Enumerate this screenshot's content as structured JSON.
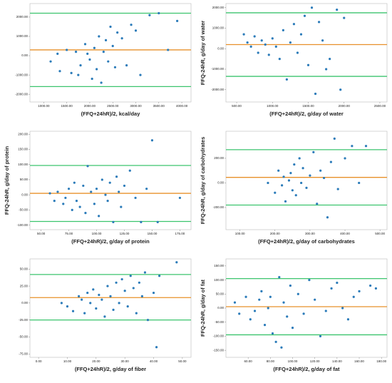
{
  "chart_data": [
    {
      "type": "scatter",
      "x_label": "(FFQ+24hR)/2, kcal/day",
      "color": "#2b7bb9",
      "x": [
        1150,
        1300,
        1350,
        1500,
        1600,
        1700,
        1750,
        1800,
        1900,
        1950,
        2000,
        2050,
        2100,
        2150,
        2200,
        2250,
        2300,
        2350,
        2400,
        2450,
        2500,
        2550,
        2600,
        2700,
        2800,
        2900,
        3000,
        3100,
        3300,
        3500,
        3700,
        3900
      ],
      "y": [
        -300,
        100,
        -800,
        300,
        -900,
        200,
        -1000,
        -500,
        600,
        100,
        -200,
        -1200,
        400,
        -700,
        1000,
        -1400,
        200,
        800,
        -300,
        1500,
        500,
        -600,
        1200,
        900,
        -500,
        1600,
        1300,
        -1000,
        2100,
        2200,
        300,
        1800
      ],
      "hlines": [
        {
          "value": 2200,
          "color": "#3cc46e"
        },
        {
          "value": 300,
          "color": "#e8902a"
        },
        {
          "value": -1600,
          "color": "#3cc46e"
        }
      ],
      "xlim": [
        700,
        4200
      ],
      "ylim": [
        -2400,
        2700
      ],
      "xticks": [
        {
          "value": 1000,
          "label": "1000.00"
        },
        {
          "value": 1500,
          "label": "1500.00"
        },
        {
          "value": 2000,
          "label": "2000.00"
        },
        {
          "value": 2500,
          "label": "2500.00"
        },
        {
          "value": 3000,
          "label": "3000.00"
        },
        {
          "value": 3500,
          "label": "3500.00"
        },
        {
          "value": 4000,
          "label": "4000.00"
        }
      ],
      "yticks": [
        {
          "value": -2000,
          "label": "-2000.00"
        },
        {
          "value": -1000,
          "label": "-1000.00"
        },
        {
          "value": 0,
          "label": "0.00"
        },
        {
          "value": 1000,
          "label": "1000.00"
        },
        {
          "value": 2000,
          "label": "2000.00"
        }
      ]
    },
    {
      "type": "scatter",
      "x_label": "(FFQ+24hR)/2, g/day of water",
      "y_label": "FFQ-24hR, g/day of water",
      "color": "#2b7bb9",
      "x": [
        600,
        650,
        700,
        750,
        800,
        850,
        900,
        950,
        1000,
        1050,
        1100,
        1150,
        1200,
        1250,
        1300,
        1350,
        1400,
        1450,
        1500,
        1550,
        1600,
        1650,
        1700,
        1750,
        1800,
        1900,
        1950,
        2000
      ],
      "y": [
        700,
        300,
        100,
        600,
        -200,
        400,
        200,
        -300,
        500,
        100,
        -500,
        900,
        -1500,
        300,
        1200,
        -200,
        700,
        1600,
        -800,
        2000,
        -2200,
        1300,
        400,
        -1000,
        -500,
        1900,
        -2000,
        1500
      ],
      "hlines": [
        {
          "value": 1750,
          "color": "#3cc46e"
        },
        {
          "value": 200,
          "color": "#e8902a"
        },
        {
          "value": -1350,
          "color": "#3cc46e"
        }
      ],
      "xlim": [
        350,
        2600
      ],
      "ylim": [
        -2600,
        2200
      ],
      "xticks": [
        {
          "value": 500,
          "label": "500.00"
        },
        {
          "value": 1000,
          "label": "1000.00"
        },
        {
          "value": 1500,
          "label": "1500.00"
        },
        {
          "value": 2000,
          "label": "2000.00"
        },
        {
          "value": 2500,
          "label": "2500.00"
        }
      ],
      "yticks": [
        {
          "value": -2000,
          "label": "-2000.00"
        },
        {
          "value": -1000,
          "label": "-1000.00"
        },
        {
          "value": 0,
          "label": "0.00"
        },
        {
          "value": 1000,
          "label": "1000.00"
        },
        {
          "value": 2000,
          "label": "2000.00"
        }
      ]
    },
    {
      "type": "scatter",
      "x_label": "(FFQ+24hR)/2, g/day of protein",
      "y_label": "FFQ-24hR, g/day of protein",
      "color": "#2b7bb9",
      "x": [
        58,
        62,
        65,
        70,
        72,
        75,
        78,
        80,
        82,
        85,
        88,
        90,
        92,
        95,
        98,
        100,
        102,
        105,
        108,
        110,
        112,
        115,
        118,
        120,
        122,
        125,
        130,
        135,
        140,
        145,
        150,
        155,
        175
      ],
      "y": [
        5,
        -20,
        10,
        -30,
        -10,
        20,
        -50,
        40,
        -20,
        -40,
        30,
        -60,
        95,
        10,
        -30,
        20,
        -70,
        50,
        0,
        -20,
        40,
        -90,
        60,
        10,
        -40,
        30,
        80,
        -10,
        -90,
        20,
        180,
        -90,
        -10
      ],
      "hlines": [
        {
          "value": 97,
          "color": "#3cc46e"
        },
        {
          "value": 5,
          "color": "#e8902a"
        },
        {
          "value": -88,
          "color": "#3cc46e"
        }
      ],
      "xlim": [
        40,
        185
      ],
      "ylim": [
        -115,
        210
      ],
      "xticks": [
        {
          "value": 50,
          "label": "50.00"
        },
        {
          "value": 75,
          "label": "75.00"
        },
        {
          "value": 100,
          "label": "100.00"
        },
        {
          "value": 125,
          "label": "125.00"
        },
        {
          "value": 150,
          "label": "150.00"
        },
        {
          "value": 175,
          "label": "175.00"
        }
      ],
      "yticks": [
        {
          "value": -100,
          "label": "-100.00"
        },
        {
          "value": -50,
          "label": "-50.00"
        },
        {
          "value": 0,
          "label": "0.00"
        },
        {
          "value": 50,
          "label": "50.00"
        },
        {
          "value": 100,
          "label": "100.00"
        },
        {
          "value": 150,
          "label": "150.00"
        },
        {
          "value": 200,
          "label": "200.00"
        }
      ]
    },
    {
      "type": "scatter",
      "x_label": "(FFQ+24hR)/2, g/day of carbohydrates",
      "y_label": "FFQ-24hR, g/day of carbohydrates",
      "color": "#2b7bb9",
      "x": [
        180,
        200,
        210,
        220,
        225,
        230,
        240,
        245,
        250,
        255,
        260,
        270,
        275,
        280,
        290,
        300,
        310,
        320,
        330,
        340,
        350,
        360,
        370,
        380,
        400,
        420,
        440,
        460
      ],
      "y": [
        0,
        -80,
        100,
        -20,
        50,
        -150,
        20,
        80,
        -60,
        150,
        -100,
        200,
        0,
        120,
        -40,
        60,
        250,
        -170,
        100,
        40,
        -280,
        170,
        360,
        -50,
        200,
        300,
        0,
        300
      ],
      "hlines": [
        {
          "value": 270,
          "color": "#3cc46e"
        },
        {
          "value": 45,
          "color": "#e8902a"
        },
        {
          "value": -180,
          "color": "#3cc46e"
        }
      ],
      "xlim": [
        60,
        520
      ],
      "ylim": [
        -380,
        420
      ],
      "xticks": [
        {
          "value": 100,
          "label": "100.00"
        },
        {
          "value": 200,
          "label": "200.00"
        },
        {
          "value": 300,
          "label": "300.00"
        },
        {
          "value": 400,
          "label": "400.00"
        },
        {
          "value": 500,
          "label": "500.00"
        }
      ],
      "yticks": [
        {
          "value": -200,
          "label": "-200.00"
        },
        {
          "value": 0,
          "label": "0.00"
        },
        {
          "value": 200,
          "label": "200.00"
        }
      ]
    },
    {
      "type": "scatter",
      "x_label": "(FFQ+24hR)/2, g/day of fiber",
      "color": "#2b7bb9",
      "x": [
        8,
        10,
        12,
        14,
        15,
        16,
        17,
        18,
        19,
        20,
        21,
        22,
        23,
        24,
        25,
        26,
        27,
        28,
        29,
        30,
        31,
        32,
        33,
        34,
        35,
        36,
        37,
        38,
        40,
        41,
        42,
        48
      ],
      "y": [
        0,
        -5,
        -12,
        10,
        5,
        -15,
        15,
        0,
        20,
        -8,
        12,
        5,
        -20,
        25,
        10,
        -10,
        30,
        0,
        35,
        18,
        -5,
        40,
        22,
        -15,
        30,
        10,
        45,
        -25,
        15,
        -65,
        40,
        60
      ],
      "hlines": [
        {
          "value": 42,
          "color": "#3cc46e"
        },
        {
          "value": 8,
          "color": "#e8902a"
        },
        {
          "value": -25,
          "color": "#3cc46e"
        }
      ],
      "xlim": [
        -3,
        53
      ],
      "ylim": [
        -80,
        65
      ],
      "xticks": [
        {
          "value": 0,
          "label": "0.00"
        },
        {
          "value": 10,
          "label": "10.00"
        },
        {
          "value": 20,
          "label": "20.00"
        },
        {
          "value": 30,
          "label": "30.00"
        },
        {
          "value": 40,
          "label": "40.00"
        },
        {
          "value": 50,
          "label": "50.00"
        }
      ],
      "yticks": [
        {
          "value": -75,
          "label": "-75.00"
        },
        {
          "value": -50,
          "label": "-50.00"
        },
        {
          "value": -25,
          "label": "-25.00"
        },
        {
          "value": 0,
          "label": "0.00"
        },
        {
          "value": 25,
          "label": "25.00"
        },
        {
          "value": 50,
          "label": "50.00"
        }
      ]
    },
    {
      "type": "scatter",
      "x_label": "(FFQ+24hR)/2, g/day of fat",
      "y_label": "FFQ-24hR, g/day of fat",
      "color": "#2b7bb9",
      "x": [
        48,
        52,
        58,
        62,
        66,
        70,
        72,
        75,
        78,
        80,
        82,
        85,
        88,
        90,
        92,
        95,
        98,
        100,
        105,
        110,
        115,
        120,
        125,
        130,
        135,
        140,
        145,
        150,
        155,
        160,
        170,
        175
      ],
      "y": [
        20,
        -20,
        40,
        -40,
        -10,
        30,
        60,
        -60,
        0,
        40,
        -90,
        -120,
        110,
        -140,
        20,
        -30,
        80,
        -70,
        50,
        -20,
        100,
        30,
        -100,
        -10,
        70,
        90,
        0,
        -40,
        40,
        60,
        80,
        70
      ],
      "hlines": [
        {
          "value": 105,
          "color": "#3cc46e"
        },
        {
          "value": 5,
          "color": "#e8902a"
        },
        {
          "value": -95,
          "color": "#3cc46e"
        }
      ],
      "xlim": [
        40,
        185
      ],
      "ylim": [
        -175,
        175
      ],
      "xticks": [
        {
          "value": 60,
          "label": "60.00"
        },
        {
          "value": 80,
          "label": "80.00"
        },
        {
          "value": 100,
          "label": "100.00"
        },
        {
          "value": 120,
          "label": "120.00"
        },
        {
          "value": 140,
          "label": "140.00"
        },
        {
          "value": 160,
          "label": "160.00"
        },
        {
          "value": 180,
          "label": "180.00"
        }
      ],
      "yticks": [
        {
          "value": -150,
          "label": "-150.00"
        },
        {
          "value": -100,
          "label": "-100.00"
        },
        {
          "value": -50,
          "label": "-50.00"
        },
        {
          "value": 0,
          "label": "0.00"
        },
        {
          "value": 50,
          "label": "50.00"
        },
        {
          "value": 100,
          "label": "100.00"
        },
        {
          "value": 150,
          "label": "150.00"
        }
      ]
    }
  ]
}
